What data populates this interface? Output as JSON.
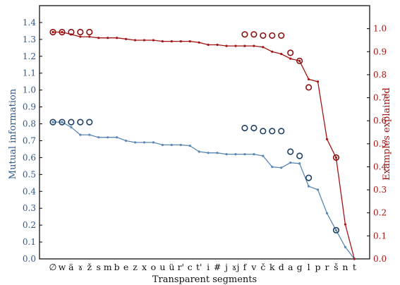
{
  "chart_data": {
    "type": "line",
    "xlabel": "Transparent segments",
    "ylabel_left": "Mutual information",
    "ylabel_right": "Examples explained",
    "ylim_left": [
      0,
      1.5
    ],
    "ylim_right": [
      0,
      1.1
    ],
    "yticks_left": [
      "0.0",
      "0.1",
      "0.2",
      "0.3",
      "0.4",
      "0.5",
      "0.6",
      "0.7",
      "0.8",
      "0.9",
      "1.0",
      "1.1",
      "1.2",
      "1.3",
      "1.4"
    ],
    "yticks_right": [
      "0.0",
      "0.1",
      "0.2",
      "0.3",
      "0.4",
      "0.5",
      "0.6",
      "0.7",
      "0.8",
      "0.9",
      "1.0"
    ],
    "categories": [
      "∅",
      "w",
      "ä",
      "ɤ",
      "ž",
      "s",
      "m",
      "b",
      "e",
      "z",
      "x",
      "o",
      "u",
      "ü",
      "r'",
      "c",
      "t'",
      "i",
      "#",
      "j",
      "ɤj",
      "f",
      "v",
      "č",
      "k",
      "d",
      "a",
      "g",
      "l",
      "p",
      "r",
      "š",
      "n",
      "t"
    ],
    "colors": {
      "left": "#5b87b4",
      "right": "#a31515"
    },
    "series": [
      {
        "axis": "left",
        "values": [
          0.81,
          0.81,
          0.78,
          0.735,
          0.735,
          0.72,
          0.72,
          0.72,
          0.7,
          0.69,
          0.69,
          0.69,
          0.675,
          0.675,
          0.675,
          0.67,
          0.635,
          0.628,
          0.628,
          0.62,
          0.62,
          0.62,
          0.62,
          0.61,
          0.545,
          0.54,
          0.57,
          0.565,
          0.43,
          0.41,
          0.27,
          0.17,
          0.07,
          0.0
        ],
        "markers": [
          {
            "category": "∅",
            "value": 0.81
          },
          {
            "category": "w",
            "value": 0.81
          },
          {
            "category": "ä",
            "value": 0.81
          },
          {
            "category": "ɤ",
            "value": 0.81
          },
          {
            "category": "ž",
            "value": 0.81
          },
          {
            "category": "f",
            "value": 0.775
          },
          {
            "category": "v",
            "value": 0.775
          },
          {
            "category": "č",
            "value": 0.757
          },
          {
            "category": "k",
            "value": 0.757
          },
          {
            "category": "d",
            "value": 0.757
          },
          {
            "category": "a",
            "value": 0.635
          },
          {
            "category": "g",
            "value": 0.61
          },
          {
            "category": "l",
            "value": 0.48
          },
          {
            "category": "š",
            "value": 0.17
          }
        ]
      },
      {
        "axis": "right",
        "values": [
          0.985,
          0.985,
          0.975,
          0.965,
          0.965,
          0.96,
          0.96,
          0.96,
          0.955,
          0.95,
          0.95,
          0.95,
          0.945,
          0.945,
          0.945,
          0.945,
          0.94,
          0.93,
          0.93,
          0.925,
          0.925,
          0.925,
          0.925,
          0.92,
          0.9,
          0.89,
          0.87,
          0.86,
          0.78,
          0.77,
          0.52,
          0.44,
          0.15,
          0.0
        ],
        "markers": [
          {
            "category": "∅",
            "value": 0.985
          },
          {
            "category": "w",
            "value": 0.985
          },
          {
            "category": "ä",
            "value": 0.985
          },
          {
            "category": "ɤ",
            "value": 0.985
          },
          {
            "category": "ž",
            "value": 0.985
          },
          {
            "category": "f",
            "value": 0.975
          },
          {
            "category": "v",
            "value": 0.975
          },
          {
            "category": "č",
            "value": 0.97
          },
          {
            "category": "k",
            "value": 0.97
          },
          {
            "category": "d",
            "value": 0.97
          },
          {
            "category": "a",
            "value": 0.895
          },
          {
            "category": "g",
            "value": 0.86
          },
          {
            "category": "l",
            "value": 0.745
          },
          {
            "category": "š",
            "value": 0.44
          }
        ]
      }
    ]
  }
}
